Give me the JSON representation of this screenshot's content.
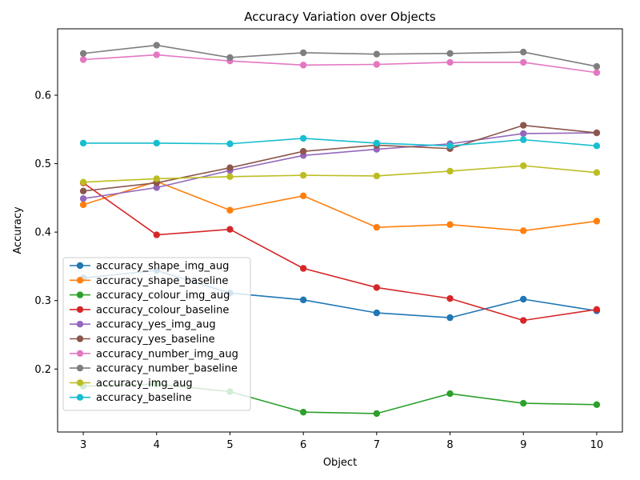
{
  "chart_data": {
    "type": "line",
    "title": "Accuracy Variation over Objects",
    "xlabel": "Object",
    "ylabel": "Accuracy",
    "x": [
      3,
      4,
      5,
      6,
      7,
      8,
      9,
      10
    ],
    "xlim": [
      2.65,
      10.35
    ],
    "ylim": [
      0.108,
      0.697
    ],
    "xticks": [
      3,
      4,
      5,
      6,
      7,
      8,
      9,
      10
    ],
    "yticks": [
      0.2,
      0.3,
      0.4,
      0.5,
      0.6
    ],
    "ytick_labels": [
      "0.2",
      "0.3",
      "0.4",
      "0.5",
      "0.6"
    ],
    "grid": false,
    "legend_position": "lower-left",
    "series": [
      {
        "name": "accuracy_shape_img_aug",
        "color": "#1f77b4",
        "values": [
          0.333,
          0.344,
          0.311,
          0.301,
          0.282,
          0.275,
          0.302,
          0.285
        ]
      },
      {
        "name": "accuracy_shape_baseline",
        "color": "#ff7f0e",
        "values": [
          0.44,
          0.474,
          0.432,
          0.453,
          0.407,
          0.411,
          0.402,
          0.416
        ]
      },
      {
        "name": "accuracy_colour_img_aug",
        "color": "#2ca02c",
        "values": [
          0.175,
          0.178,
          0.167,
          0.137,
          0.135,
          0.164,
          0.15,
          0.148
        ]
      },
      {
        "name": "accuracy_colour_baseline",
        "color": "#d62728",
        "values": [
          0.472,
          0.396,
          0.404,
          0.347,
          0.319,
          0.303,
          0.271,
          0.287
        ]
      },
      {
        "name": "accuracy_yes_img_aug",
        "color": "#9467bd",
        "values": [
          0.449,
          0.465,
          0.49,
          0.512,
          0.521,
          0.529,
          0.544,
          0.545
        ]
      },
      {
        "name": "accuracy_yes_baseline",
        "color": "#8c564b",
        "values": [
          0.46,
          0.472,
          0.494,
          0.518,
          0.527,
          0.522,
          0.556,
          0.545
        ]
      },
      {
        "name": "accuracy_number_img_aug",
        "color": "#e377c2",
        "values": [
          0.652,
          0.659,
          0.65,
          0.644,
          0.645,
          0.648,
          0.648,
          0.633
        ]
      },
      {
        "name": "accuracy_number_baseline",
        "color": "#7f7f7f",
        "values": [
          0.661,
          0.673,
          0.655,
          0.662,
          0.66,
          0.661,
          0.663,
          0.642
        ]
      },
      {
        "name": "accuracy_img_aug",
        "color": "#bcbd22",
        "values": [
          0.473,
          0.478,
          0.481,
          0.483,
          0.482,
          0.489,
          0.497,
          0.487
        ]
      },
      {
        "name": "accuracy_baseline",
        "color": "#17becf",
        "values": [
          0.53,
          0.53,
          0.529,
          0.537,
          0.53,
          0.526,
          0.535,
          0.526
        ]
      }
    ]
  }
}
